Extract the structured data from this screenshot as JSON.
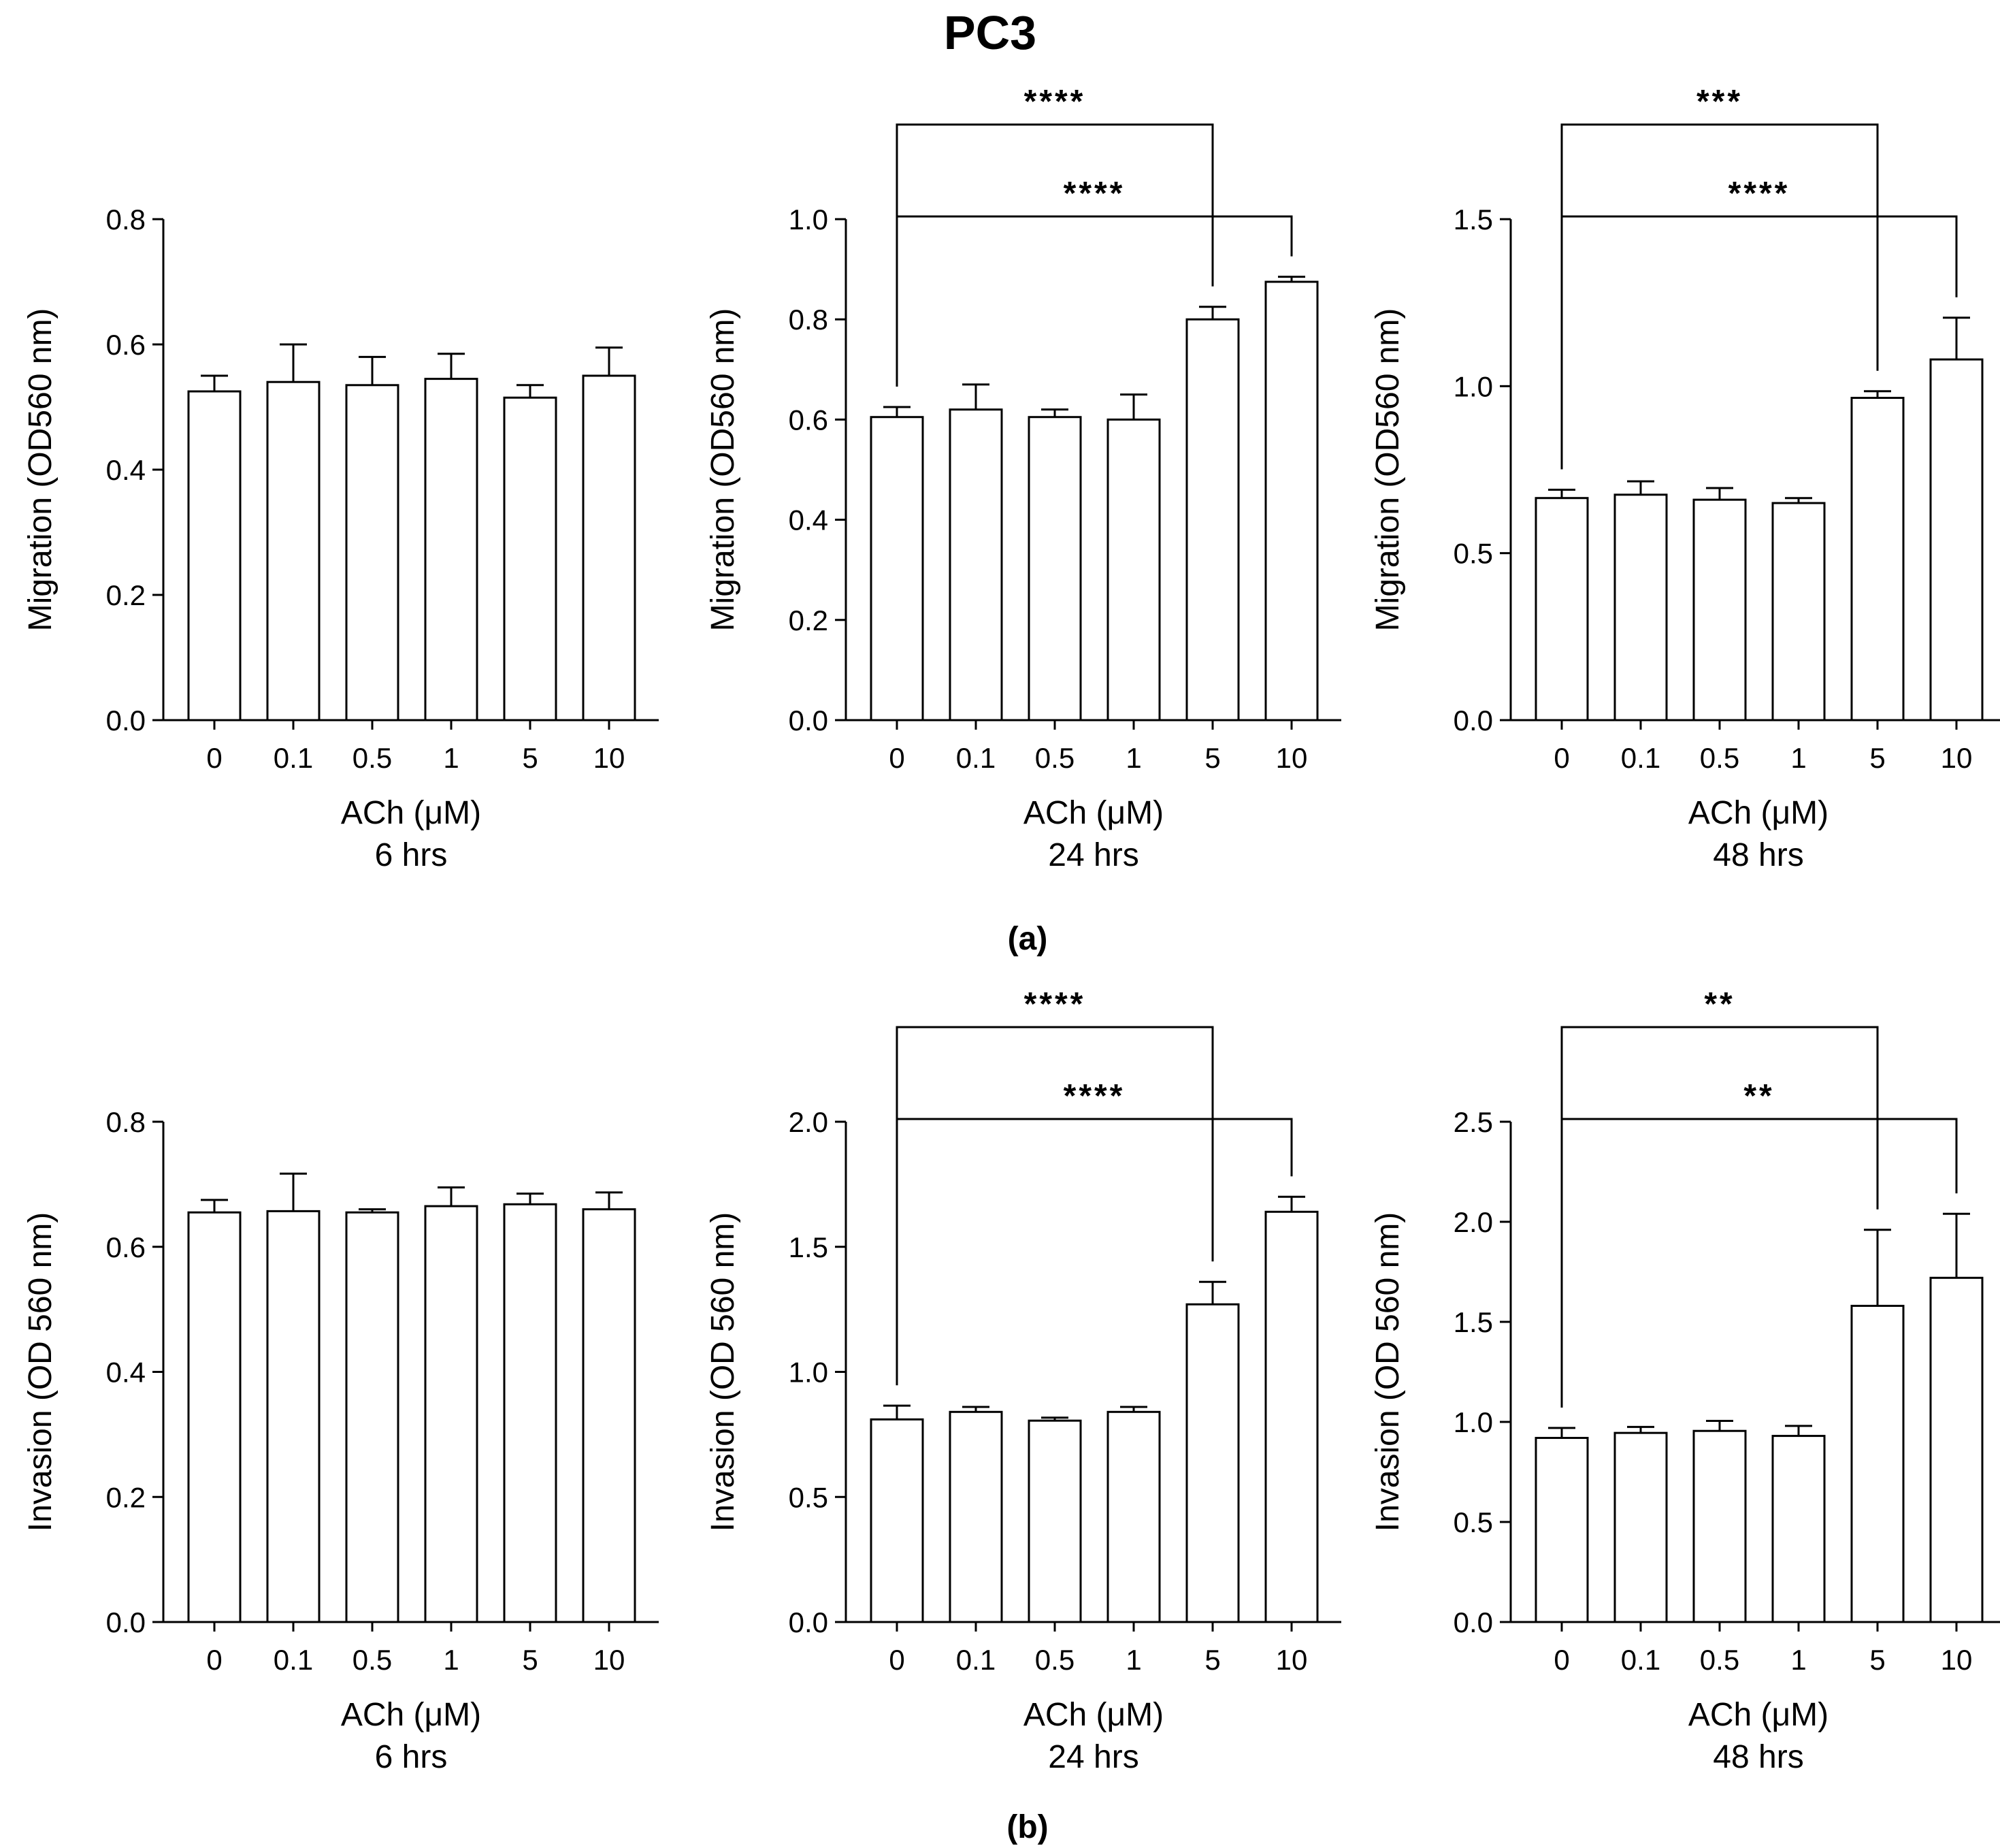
{
  "figure": {
    "title": "PC3",
    "row_labels": [
      "(a)",
      "(b)"
    ]
  },
  "chart_data": [
    {
      "type": "bar",
      "row": 0,
      "col": 0,
      "categories": [
        "0",
        "0.1",
        "0.5",
        "1",
        "5",
        "10"
      ],
      "values": [
        0.525,
        0.54,
        0.535,
        0.545,
        0.515,
        0.55
      ],
      "errors": [
        0.025,
        0.06,
        0.045,
        0.04,
        0.02,
        0.045
      ],
      "ylabel": "Migration (OD560 nm)",
      "xlabel": "ACh (μM)",
      "subtitle": "6 hrs",
      "ylim": [
        0,
        0.8
      ],
      "yticks": [
        "0.0",
        "0.2",
        "0.4",
        "0.6",
        "0.8"
      ],
      "significance": []
    },
    {
      "type": "bar",
      "row": 0,
      "col": 1,
      "categories": [
        "0",
        "0.1",
        "0.5",
        "1",
        "5",
        "10"
      ],
      "values": [
        0.605,
        0.62,
        0.605,
        0.6,
        0.8,
        0.875
      ],
      "errors": [
        0.02,
        0.05,
        0.015,
        0.05,
        0.025,
        0.01
      ],
      "ylabel": "Migration (OD560 nm)",
      "xlabel": "ACh (μM)",
      "subtitle": "24 hrs",
      "ylim": [
        0,
        1.0
      ],
      "yticks": [
        "0.0",
        "0.2",
        "0.4",
        "0.6",
        "0.8",
        "1.0"
      ],
      "significance": [
        {
          "from": 0,
          "to": 4,
          "label": "****"
        },
        {
          "from": 0,
          "to": 5,
          "label": "****"
        }
      ]
    },
    {
      "type": "bar",
      "row": 0,
      "col": 2,
      "categories": [
        "0",
        "0.1",
        "0.5",
        "1",
        "5",
        "10"
      ],
      "values": [
        0.665,
        0.675,
        0.66,
        0.65,
        0.965,
        1.08
      ],
      "errors": [
        0.025,
        0.04,
        0.035,
        0.015,
        0.02,
        0.125
      ],
      "ylabel": "Migration (OD560 nm)",
      "xlabel": "ACh (μM)",
      "subtitle": "48 hrs",
      "ylim": [
        0,
        1.5
      ],
      "yticks": [
        "0.0",
        "0.5",
        "1.0",
        "1.5"
      ],
      "significance": [
        {
          "from": 0,
          "to": 4,
          "label": "***"
        },
        {
          "from": 0,
          "to": 5,
          "label": "****"
        }
      ]
    },
    {
      "type": "bar",
      "row": 1,
      "col": 0,
      "categories": [
        "0",
        "0.1",
        "0.5",
        "1",
        "5",
        "10"
      ],
      "values": [
        0.655,
        0.657,
        0.655,
        0.665,
        0.668,
        0.66
      ],
      "errors": [
        0.02,
        0.06,
        0.005,
        0.03,
        0.017,
        0.027
      ],
      "ylabel": "Invasion (OD 560 nm)",
      "xlabel": "ACh (μM)",
      "subtitle": "6 hrs",
      "ylim": [
        0,
        0.8
      ],
      "yticks": [
        "0.0",
        "0.2",
        "0.4",
        "0.6",
        "0.8"
      ],
      "significance": []
    },
    {
      "type": "bar",
      "row": 1,
      "col": 1,
      "categories": [
        "0",
        "0.1",
        "0.5",
        "1",
        "5",
        "10"
      ],
      "values": [
        0.81,
        0.84,
        0.805,
        0.84,
        1.27,
        1.64
      ],
      "errors": [
        0.055,
        0.02,
        0.012,
        0.02,
        0.09,
        0.06
      ],
      "ylabel": "Invasion (OD 560 nm)",
      "xlabel": "ACh (μM)",
      "subtitle": "24 hrs",
      "ylim": [
        0,
        2.0
      ],
      "yticks": [
        "0.0",
        "0.5",
        "1.0",
        "1.5",
        "2.0"
      ],
      "significance": [
        {
          "from": 0,
          "to": 4,
          "label": "****"
        },
        {
          "from": 0,
          "to": 5,
          "label": "****"
        }
      ]
    },
    {
      "type": "bar",
      "row": 1,
      "col": 2,
      "categories": [
        "0",
        "0.1",
        "0.5",
        "1",
        "5",
        "10"
      ],
      "values": [
        0.92,
        0.945,
        0.955,
        0.93,
        1.58,
        1.72
      ],
      "errors": [
        0.05,
        0.03,
        0.05,
        0.05,
        0.38,
        0.32
      ],
      "ylabel": "Invasion (OD 560 nm)",
      "xlabel": "ACh (μM)",
      "subtitle": "48 hrs",
      "ylim": [
        0,
        2.5
      ],
      "yticks": [
        "0.0",
        "0.5",
        "1.0",
        "1.5",
        "2.0",
        "2.5"
      ],
      "significance": [
        {
          "from": 0,
          "to": 4,
          "label": "**"
        },
        {
          "from": 0,
          "to": 5,
          "label": "**"
        }
      ]
    }
  ]
}
